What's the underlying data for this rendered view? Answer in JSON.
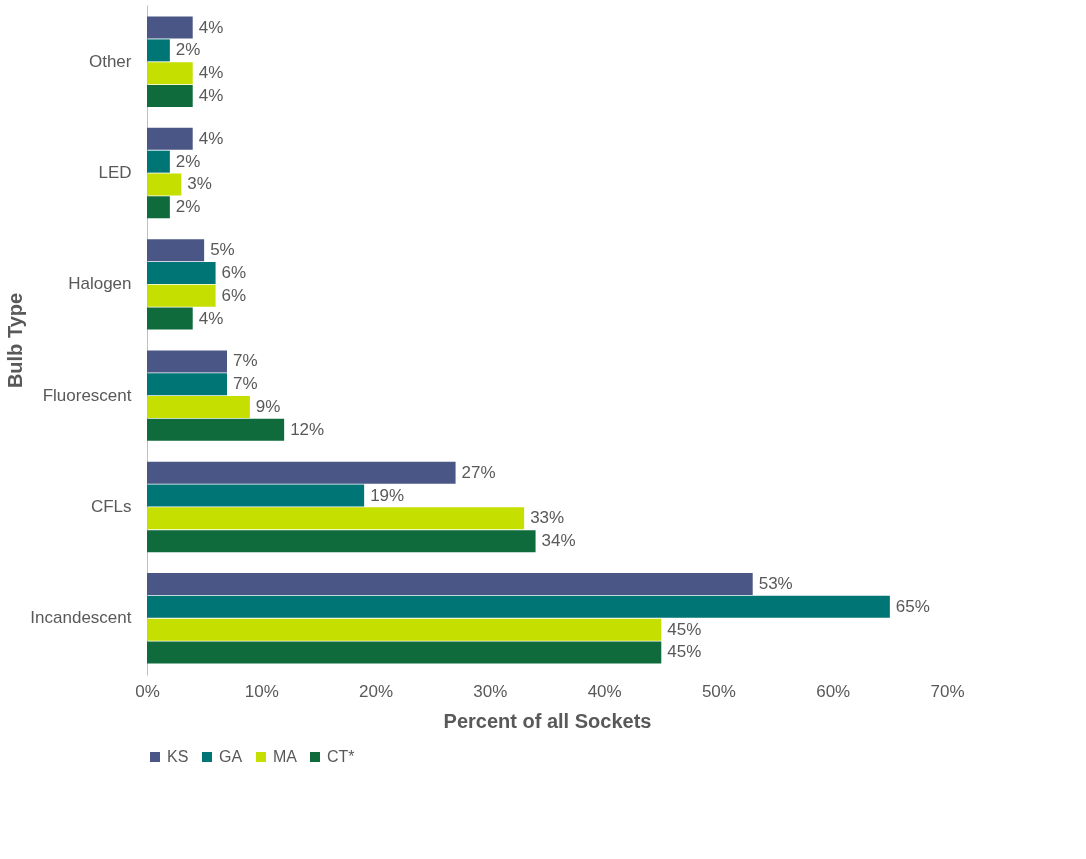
{
  "chart_data": {
    "type": "bar",
    "orientation": "horizontal",
    "xlabel": "Percent of all Sockets",
    "ylabel": "Bulb Type",
    "categories": [
      "Other",
      "LED",
      "Halogen",
      "Fluorescent",
      "CFLs",
      "Incandescent"
    ],
    "series": [
      {
        "name": "KS",
        "color": "#4a5786",
        "values": [
          4,
          4,
          5,
          7,
          27,
          53
        ],
        "value_labels": [
          "4%",
          "4%",
          "5%",
          "7%",
          "27%",
          "53%"
        ]
      },
      {
        "name": "GA",
        "color": "#007575",
        "values": [
          2,
          2,
          6,
          7,
          19,
          65
        ],
        "value_labels": [
          "2%",
          "2%",
          "6%",
          "7%",
          "19%",
          "65%"
        ]
      },
      {
        "name": "MA",
        "color": "#c4df00",
        "values": [
          4,
          3,
          6,
          9,
          33,
          45
        ],
        "value_labels": [
          "4%",
          "3%",
          "6%",
          "9%",
          "33%",
          "45%"
        ]
      },
      {
        "name": "CT*",
        "color": "#0f6b3b",
        "values": [
          4,
          2,
          4,
          12,
          34,
          45
        ],
        "value_labels": [
          "4%",
          "2%",
          "4%",
          "12%",
          "34%",
          "45%"
        ]
      }
    ],
    "xlim": [
      0,
      70
    ],
    "xticks": [
      {
        "value": 0,
        "label": "0%"
      },
      {
        "value": 10,
        "label": "10%"
      },
      {
        "value": 20,
        "label": "20%"
      },
      {
        "value": 30,
        "label": "30%"
      },
      {
        "value": 40,
        "label": "40%"
      },
      {
        "value": 50,
        "label": "50%"
      },
      {
        "value": 60,
        "label": "60%"
      },
      {
        "value": 70,
        "label": "70%"
      }
    ],
    "grid": false,
    "legend": "bottom"
  }
}
